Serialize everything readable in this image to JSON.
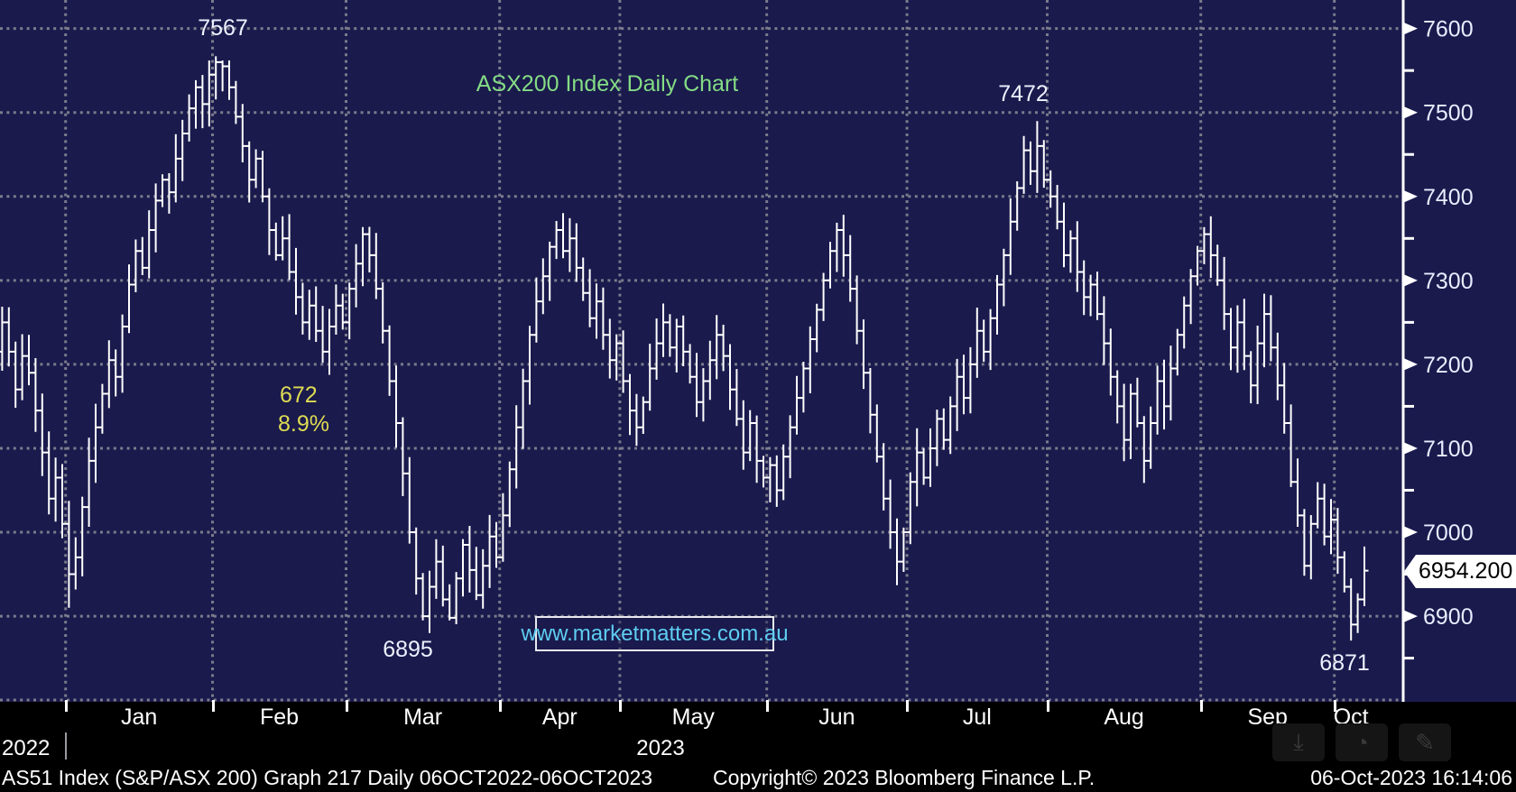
{
  "chart": {
    "title": "ASX200 Index Daily Chart",
    "watermark": "www.marketmatters.com.au",
    "last_price": "6954.200",
    "annotations": {
      "feb_high": "7567",
      "jul_high": "7472",
      "decline_points": "672",
      "decline_pct": "8.9%",
      "mar_low": "6895",
      "oct_low": "6871"
    }
  },
  "x_axis": {
    "year_left": "2022",
    "year_right": "2023"
  },
  "status_bar": {
    "left": "AS51 Index (S&P/ASX 200) Graph 217  Daily 06OCT2022-06OCT2023",
    "center": "Copyright© 2023 Bloomberg Finance L.P.",
    "right": "06-Oct-2023 16:14:06"
  },
  "icons": {
    "download": "⤓",
    "alarm": "◔",
    "annotate": "✎"
  },
  "chart_data": {
    "type": "ohlc_bar",
    "title": "ASX200 Index Daily Chart",
    "period": "Daily 06OCT2022-06OCT2023",
    "ylim": [
      6798,
      7634
    ],
    "y_ticks_major": [
      7600,
      7500,
      7400,
      7300,
      7200,
      7100,
      7000,
      6900
    ],
    "y_ticks_minor": [
      7550,
      7450,
      7350,
      7250,
      7150,
      7050,
      6950,
      6850
    ],
    "grid": "dotted",
    "legend_position": "none",
    "colors": {
      "background": "#1a1a4d",
      "bars": "#ffffff",
      "grid_dots": "#94949c",
      "title_green": "#84dc84",
      "annotation_yellow": "#dedc52",
      "watermark_cyan": "#5ecdf0",
      "axis_text": "#e9edff",
      "badge_bg": "#ffffff"
    },
    "months": [
      {
        "label": "",
        "days": 10
      },
      {
        "label": "Jan",
        "days": 22
      },
      {
        "label": "Feb",
        "days": 20
      },
      {
        "label": "Mar",
        "days": 23
      },
      {
        "label": "Apr",
        "days": 18
      },
      {
        "label": "May",
        "days": 22
      },
      {
        "label": "Jun",
        "days": 21
      },
      {
        "label": "Jul",
        "days": 21
      },
      {
        "label": "Aug",
        "days": 23
      },
      {
        "label": "Sep",
        "days": 20
      },
      {
        "label": "Oct",
        "days": 5
      }
    ],
    "closes": [
      7250,
      7215,
      7170,
      7210,
      7190,
      7145,
      7095,
      7040,
      7065,
      7010,
      6950,
      6970,
      7030,
      7085,
      7125,
      7165,
      7205,
      7185,
      7245,
      7295,
      7335,
      7315,
      7360,
      7395,
      7420,
      7405,
      7445,
      7475,
      7505,
      7530,
      7510,
      7545,
      7560,
      7555,
      7530,
      7495,
      7460,
      7420,
      7445,
      7400,
      7360,
      7330,
      7350,
      7310,
      7280,
      7250,
      7270,
      7240,
      7215,
      7245,
      7270,
      7250,
      7290,
      7320,
      7355,
      7330,
      7290,
      7240,
      7180,
      7130,
      7070,
      7000,
      6945,
      6900,
      6935,
      6965,
      6920,
      6898,
      6945,
      6985,
      6955,
      6925,
      6960,
      6995,
      6970,
      7020,
      7075,
      7125,
      7180,
      7235,
      7275,
      7305,
      7340,
      7360,
      7335,
      7350,
      7315,
      7285,
      7255,
      7275,
      7235,
      7205,
      7225,
      7180,
      7145,
      7125,
      7155,
      7195,
      7225,
      7250,
      7220,
      7245,
      7215,
      7185,
      7155,
      7180,
      7205,
      7235,
      7210,
      7170,
      7135,
      7095,
      7130,
      7085,
      7065,
      7080,
      7050,
      7090,
      7125,
      7160,
      7195,
      7230,
      7265,
      7300,
      7335,
      7360,
      7330,
      7290,
      7240,
      7190,
      7140,
      7090,
      7040,
      7000,
      6965,
      7000,
      7060,
      7095,
      7065,
      7100,
      7135,
      7110,
      7150,
      7185,
      7160,
      7200,
      7240,
      7215,
      7255,
      7295,
      7330,
      7370,
      7410,
      7455,
      7430,
      7460,
      7420,
      7400,
      7370,
      7330,
      7350,
      7310,
      7280,
      7295,
      7260,
      7225,
      7185,
      7150,
      7110,
      7165,
      7130,
      7085,
      7130,
      7180,
      7150,
      7195,
      7235,
      7270,
      7305,
      7335,
      7355,
      7330,
      7300,
      7260,
      7220,
      7250,
      7210,
      7175,
      7225,
      7260,
      7220,
      7175,
      7130,
      7060,
      7020,
      6960,
      7010,
      7040,
      6995,
      7015,
      6970,
      6935,
      6890,
      6920,
      6954.2
    ],
    "key_points": [
      {
        "bar": 32,
        "type": "high",
        "value": 7567,
        "label": "7567"
      },
      {
        "bar": 153,
        "type": "high",
        "value": 7472,
        "label": "7472"
      },
      {
        "bar": 63,
        "type": "low",
        "value": 6895,
        "label": "6895"
      },
      {
        "bar": 67,
        "type": "low",
        "value": 6895
      },
      {
        "bar": 202,
        "type": "low",
        "value": 6871,
        "label": "6871"
      },
      {
        "bar": 10,
        "type": "low",
        "value": 6910
      }
    ]
  }
}
